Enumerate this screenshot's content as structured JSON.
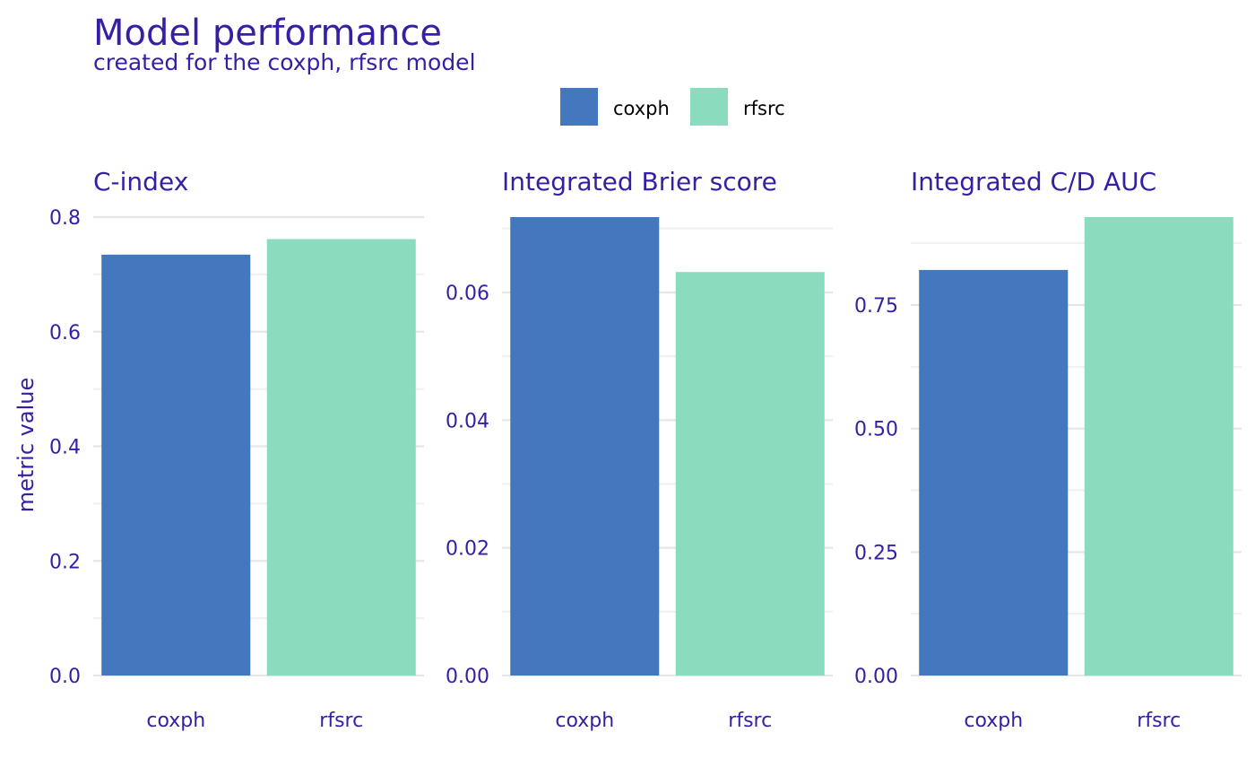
{
  "title": "Model performance",
  "subtitle": "created for the coxph, rfsrc model",
  "legend": [
    {
      "label": "coxph",
      "color": "#4378bf"
    },
    {
      "label": "rfsrc",
      "color": "#8bdcbe"
    }
  ],
  "chart_data": [
    {
      "type": "bar",
      "title": "C-index",
      "ylabel": "metric value",
      "categories": [
        "coxph",
        "rfsrc"
      ],
      "series": [
        {
          "values": [
            0.7345,
            0.7617
          ]
        }
      ],
      "ylim": [
        0,
        0.8
      ],
      "yticks": [
        0.0,
        0.2,
        0.4,
        0.6,
        0.8
      ],
      "ytick_labels": [
        "0.0",
        "0.2",
        "0.4",
        "0.6",
        "0.8"
      ],
      "grid": true,
      "legend": "top"
    },
    {
      "type": "bar",
      "title": "Integrated Brier score",
      "ylabel": "",
      "categories": [
        "coxph",
        "rfsrc"
      ],
      "series": [
        {
          "values": [
            0.0718,
            0.0632
          ]
        }
      ],
      "ylim": [
        0,
        0.0718
      ],
      "yticks": [
        0.0,
        0.02,
        0.04,
        0.06
      ],
      "ytick_labels": [
        "0.00",
        "0.02",
        "0.04",
        "0.06"
      ],
      "grid": true,
      "legend": "top"
    },
    {
      "type": "bar",
      "title": "Integrated C/D AUC",
      "ylabel": "",
      "categories": [
        "coxph",
        "rfsrc"
      ],
      "series": [
        {
          "values": [
            0.821,
            0.928
          ]
        }
      ],
      "ylim": [
        0,
        0.928
      ],
      "yticks": [
        0.0,
        0.25,
        0.5,
        0.75
      ],
      "ytick_labels": [
        "0.00",
        "0.25",
        "0.50",
        "0.75"
      ],
      "grid": true,
      "legend": "top"
    }
  ]
}
